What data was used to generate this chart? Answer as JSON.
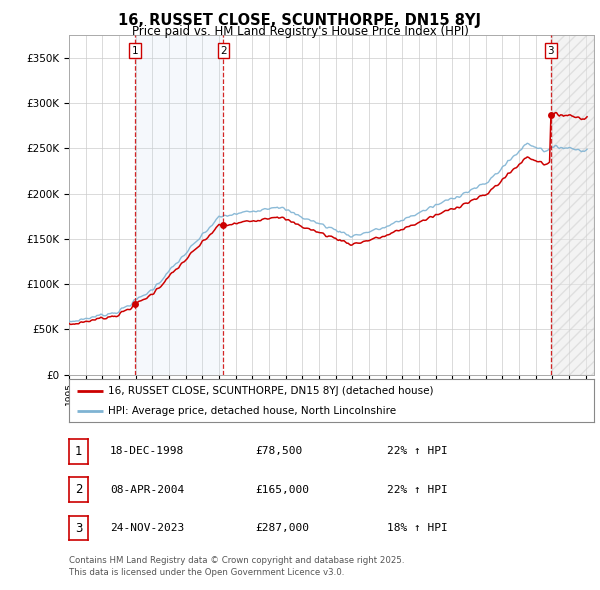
{
  "title": "16, RUSSET CLOSE, SCUNTHORPE, DN15 8YJ",
  "subtitle": "Price paid vs. HM Land Registry's House Price Index (HPI)",
  "legend_line1": "16, RUSSET CLOSE, SCUNTHORPE, DN15 8YJ (detached house)",
  "legend_line2": "HPI: Average price, detached house, North Lincolnshire",
  "footer1": "Contains HM Land Registry data © Crown copyright and database right 2025.",
  "footer2": "This data is licensed under the Open Government Licence v3.0.",
  "sales": [
    {
      "num": 1,
      "date": "18-DEC-1998",
      "price": 78500,
      "pct": "22%",
      "dir": "↑",
      "x_year": 1998.958
    },
    {
      "num": 2,
      "date": "08-APR-2004",
      "price": 165000,
      "pct": "22%",
      "dir": "↑",
      "x_year": 2004.27
    },
    {
      "num": 3,
      "date": "24-NOV-2023",
      "price": 287000,
      "pct": "18%",
      "dir": "↑",
      "x_year": 2023.896
    }
  ],
  "hpi_color": "#7fb3d3",
  "price_color": "#cc0000",
  "vline_color": "#cc0000",
  "shade_color": "#dce8f5",
  "background_color": "#ffffff",
  "grid_color": "#cccccc",
  "ylim": [
    0,
    375000
  ],
  "xlim_start": 1995.0,
  "xlim_end": 2026.5,
  "yticks": [
    0,
    50000,
    100000,
    150000,
    200000,
    250000,
    300000,
    350000
  ],
  "ytick_labels": [
    "£0",
    "£50K",
    "£100K",
    "£150K",
    "£200K",
    "£250K",
    "£300K",
    "£350K"
  ],
  "xticks": [
    1995,
    1996,
    1997,
    1998,
    1999,
    2000,
    2001,
    2002,
    2003,
    2004,
    2005,
    2006,
    2007,
    2008,
    2009,
    2010,
    2011,
    2012,
    2013,
    2014,
    2015,
    2016,
    2017,
    2018,
    2019,
    2020,
    2021,
    2022,
    2023,
    2024,
    2025,
    2026
  ]
}
